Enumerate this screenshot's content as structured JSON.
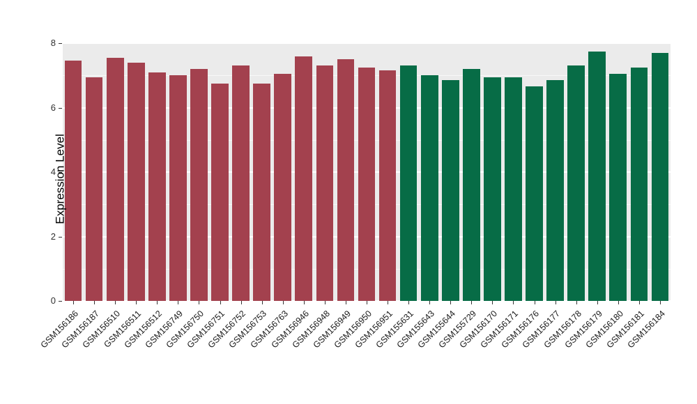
{
  "chart_data": {
    "type": "bar",
    "title": "",
    "xlabel": "",
    "ylabel": "Expression Level",
    "ylim": [
      0,
      8
    ],
    "yticks": [
      0,
      2,
      4,
      6,
      8
    ],
    "yticks_minor": [
      1,
      3,
      5,
      7
    ],
    "grid": true,
    "legend_position": "none",
    "panel_background": "#EBEBEB",
    "grid_color": "#FFFFFF",
    "group_colors": {
      "group1": "#A3414E",
      "group2": "#076C46"
    },
    "categories": [
      "GSM156186",
      "GSM156187",
      "GSM156510",
      "GSM156511",
      "GSM156512",
      "GSM156749",
      "GSM156750",
      "GSM156751",
      "GSM156752",
      "GSM156753",
      "GSM156763",
      "GSM156946",
      "GSM156948",
      "GSM156949",
      "GSM156950",
      "GSM156951",
      "GSM155631",
      "GSM155643",
      "GSM155644",
      "GSM155729",
      "GSM156170",
      "GSM156171",
      "GSM156176",
      "GSM156177",
      "GSM156178",
      "GSM156179",
      "GSM156180",
      "GSM156181",
      "GSM156184"
    ],
    "values": [
      7.45,
      6.95,
      7.55,
      7.4,
      7.1,
      7.0,
      7.2,
      6.75,
      7.3,
      6.75,
      7.05,
      7.6,
      7.3,
      7.5,
      7.25,
      7.15,
      7.3,
      7.0,
      6.85,
      7.2,
      6.95,
      6.95,
      6.65,
      6.85,
      7.3,
      7.75,
      7.05,
      7.25,
      7.7
    ],
    "groups": [
      "group1",
      "group1",
      "group1",
      "group1",
      "group1",
      "group1",
      "group1",
      "group1",
      "group1",
      "group1",
      "group1",
      "group1",
      "group1",
      "group1",
      "group1",
      "group1",
      "group2",
      "group2",
      "group2",
      "group2",
      "group2",
      "group2",
      "group2",
      "group2",
      "group2",
      "group2",
      "group2",
      "group2",
      "group2"
    ]
  }
}
